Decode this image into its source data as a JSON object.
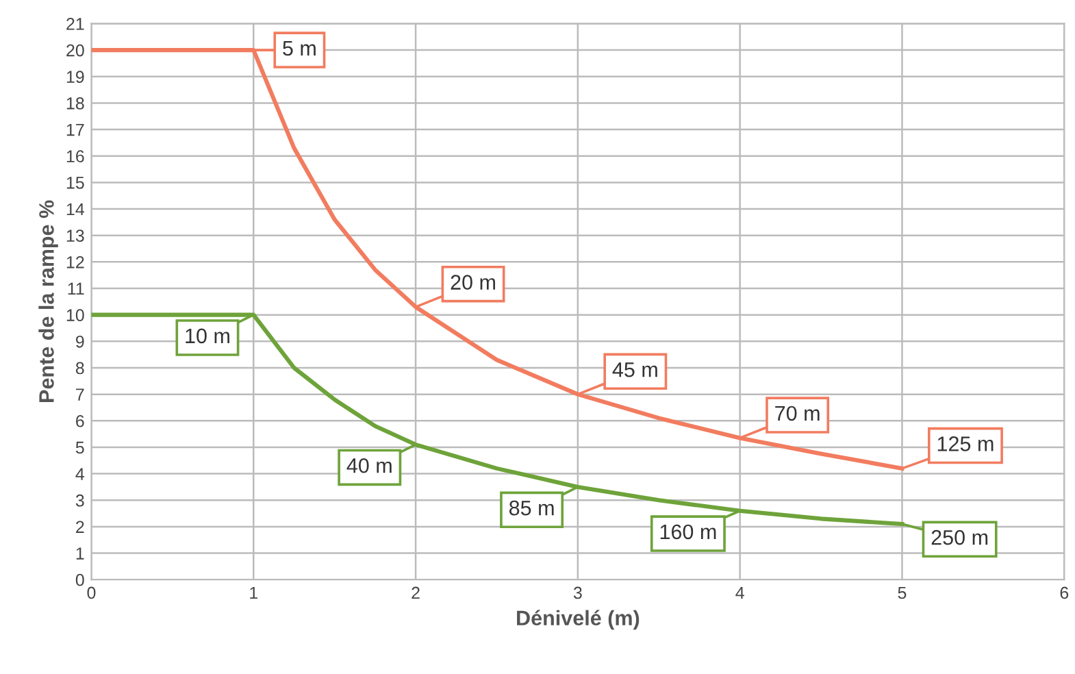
{
  "chart_data": {
    "type": "line",
    "xlabel": "Dénivelé (m)",
    "ylabel": "Pente de la rampe %",
    "xlim": [
      0,
      6
    ],
    "ylim": [
      0,
      21
    ],
    "xticks": [
      0,
      1,
      2,
      3,
      4,
      5,
      6
    ],
    "yticks": [
      0,
      1,
      2,
      3,
      4,
      5,
      6,
      7,
      8,
      9,
      10,
      11,
      12,
      13,
      14,
      15,
      16,
      17,
      18,
      19,
      20,
      21
    ],
    "grid": true,
    "marker": "none",
    "line_style": "solid",
    "series": [
      {
        "color": "#f27c5f",
        "x": [
          0,
          1,
          1.25,
          1.5,
          1.75,
          2,
          2.5,
          3,
          3.5,
          4,
          4.5,
          5
        ],
        "values": [
          20,
          20,
          16.3,
          13.6,
          11.7,
          10.3,
          8.3,
          7.0,
          6.1,
          5.35,
          4.75,
          4.2
        ]
      },
      {
        "color": "#6ea33a",
        "x": [
          0,
          1,
          1.25,
          1.5,
          1.75,
          2,
          2.5,
          3,
          3.5,
          4,
          4.5,
          5
        ],
        "values": [
          10,
          10,
          8.0,
          6.8,
          5.8,
          5.1,
          4.2,
          3.5,
          3.0,
          2.6,
          2.3,
          2.1
        ]
      }
    ],
    "annotations": [
      {
        "text": "5 m",
        "x": 1,
        "y": 20
      },
      {
        "text": "20 m",
        "x": 2,
        "y": 10.3
      },
      {
        "text": "45 m",
        "x": 3,
        "y": 7.0
      },
      {
        "text": "70 m",
        "x": 4,
        "y": 5.35
      },
      {
        "text": "125 m",
        "x": 5,
        "y": 4.2
      },
      {
        "text": "10 m",
        "x": 1,
        "y": 10
      },
      {
        "text": "40 m",
        "x": 2,
        "y": 5.1
      },
      {
        "text": "85 m",
        "x": 3,
        "y": 3.5
      },
      {
        "text": "160 m",
        "x": 4,
        "y": 2.6
      },
      {
        "text": "250 m",
        "x": 5,
        "y": 2.1
      }
    ]
  }
}
